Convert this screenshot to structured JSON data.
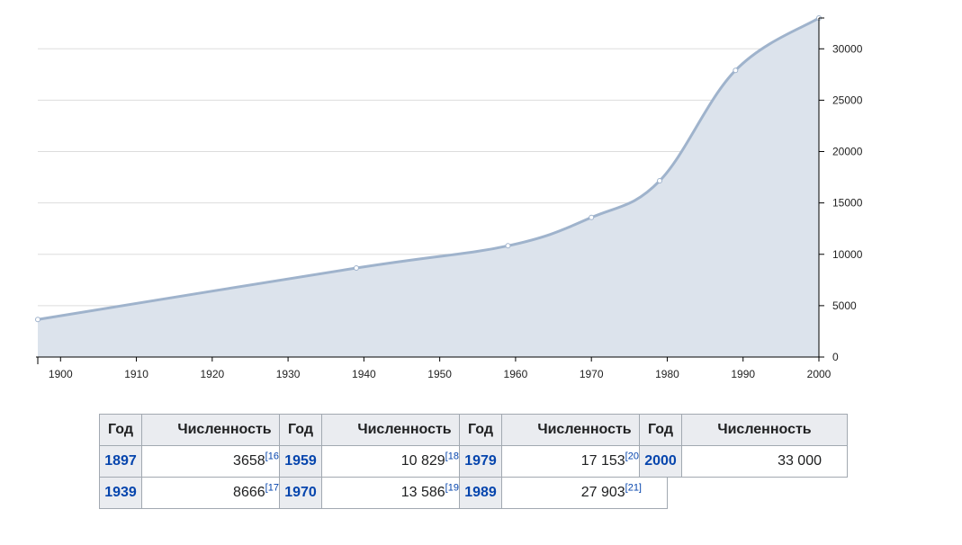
{
  "chart_data": {
    "type": "area",
    "x": [
      1897,
      1939,
      1959,
      1970,
      1979,
      1989,
      2000
    ],
    "y": [
      3658,
      8666,
      10829,
      13586,
      17153,
      27903,
      33000
    ],
    "xlim": [
      1897,
      2000
    ],
    "ylim": [
      0,
      33000
    ],
    "x_ticks": [
      1900,
      1910,
      1920,
      1930,
      1940,
      1950,
      1960,
      1970,
      1980,
      1990,
      2000
    ],
    "y_ticks": [
      0,
      5000,
      10000,
      15000,
      20000,
      25000,
      30000
    ],
    "grid": true,
    "y_axis_side": "right",
    "fill_color": "#dce3ec",
    "line_color": "#9fb3cc"
  },
  "tables": [
    {
      "header": {
        "year": "Год",
        "value": "Численность"
      },
      "rows": [
        {
          "year": "1897",
          "value": "3658",
          "ref": "[16]"
        },
        {
          "year": "1939",
          "value": "8666",
          "ref": "[17]"
        }
      ]
    },
    {
      "header": {
        "year": "Год",
        "value": "Численность"
      },
      "rows": [
        {
          "year": "1959",
          "value": "10 829",
          "ref": "[18]"
        },
        {
          "year": "1970",
          "value": "13 586",
          "ref": "[19]"
        }
      ]
    },
    {
      "header": {
        "year": "Год",
        "value": "Численность"
      },
      "rows": [
        {
          "year": "1979",
          "value": "17 153",
          "ref": "[20]"
        },
        {
          "year": "1989",
          "value": "27 903",
          "ref": "[21]"
        }
      ]
    },
    {
      "header": {
        "year": "Год",
        "value": "Численность"
      },
      "rows": [
        {
          "year": "2000",
          "value": "33 000",
          "ref": ""
        }
      ]
    }
  ]
}
